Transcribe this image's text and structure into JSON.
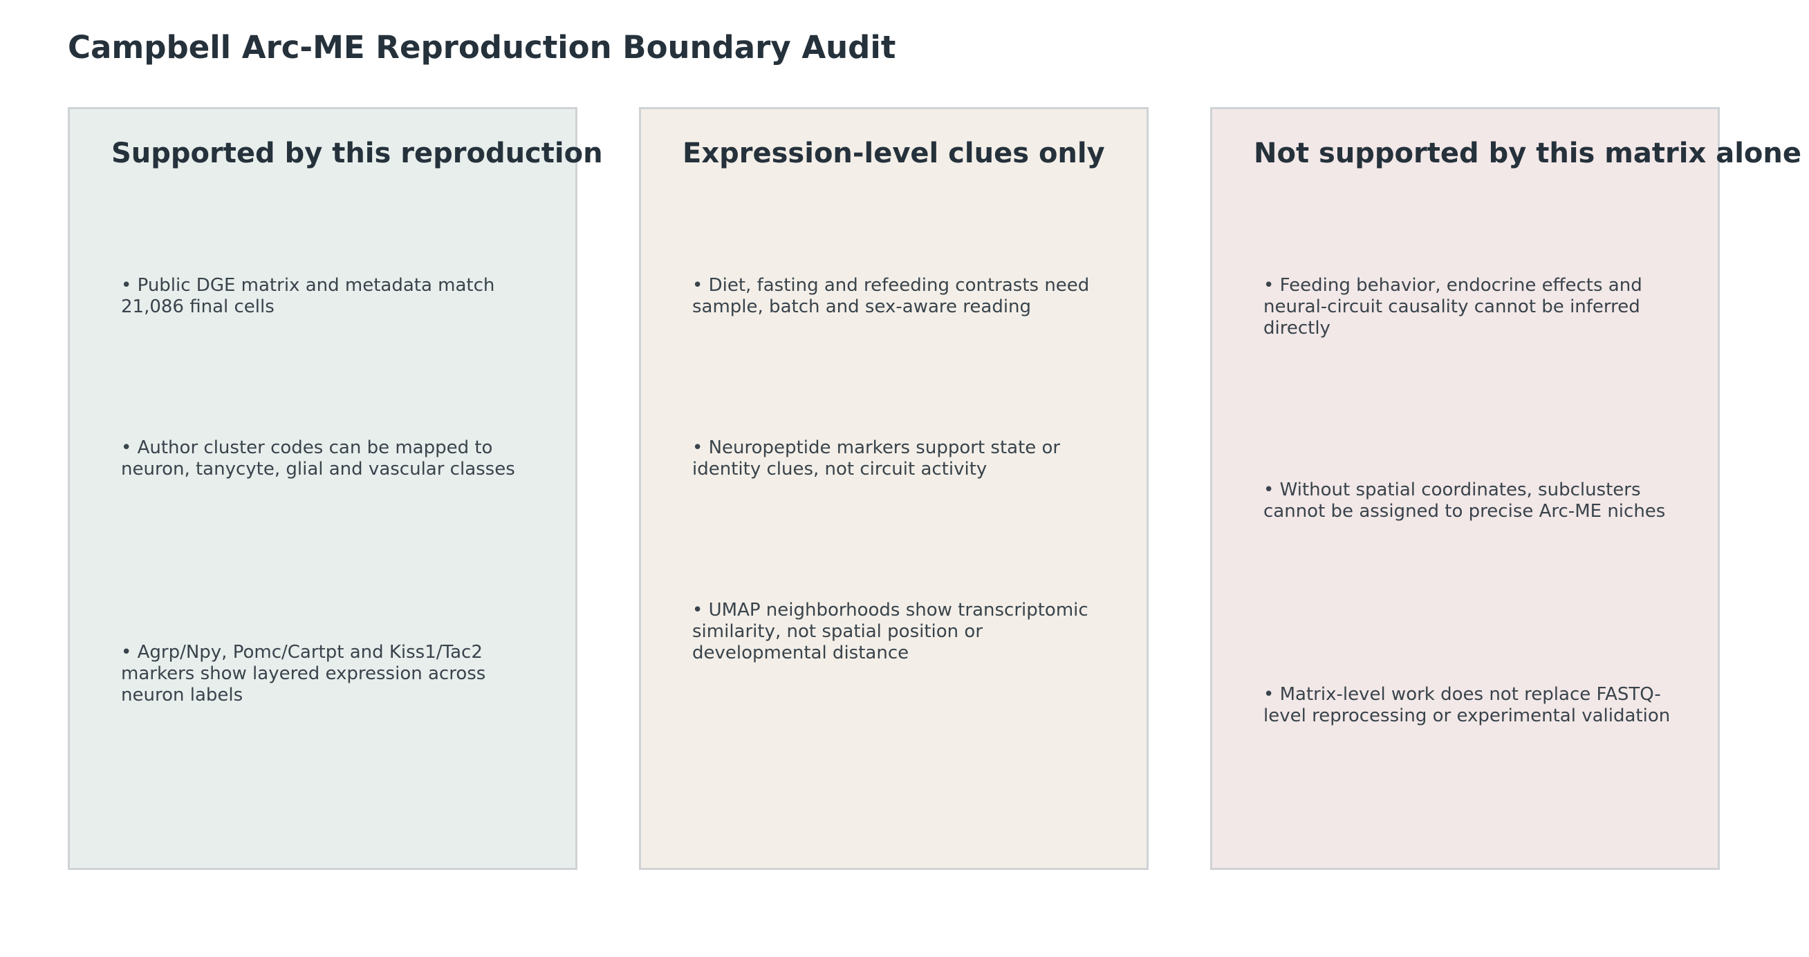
{
  "title": "Campbell Arc-ME Reproduction Boundary Audit",
  "colors": {
    "supported_bg": "#e8eeec",
    "clues_bg": "#f3efe8",
    "unsupported_bg": "#f2e8e7",
    "panel_border": "#cfd3d6",
    "title_text": "#25313b",
    "body_text": "#39434b"
  },
  "panels": [
    {
      "heading": "Supported by this reproduction",
      "items": [
        "• Public DGE matrix and metadata match 21,086 final cells",
        "• Author cluster codes can be mapped to neuron, tanycyte, glial and vascular classes",
        "• Agrp/Npy, Pomc/Cartpt and Kiss1/Tac2 markers show layered expression across neuron labels"
      ]
    },
    {
      "heading": "Expression-level clues only",
      "items": [
        "• Diet, fasting and refeeding contrasts need sample, batch and sex-aware reading",
        "• Neuropeptide markers support state or identity clues, not circuit activity",
        "• UMAP neighborhoods show transcriptomic similarity, not spatial position or developmental distance"
      ]
    },
    {
      "heading": "Not supported by this matrix alone",
      "items": [
        "• Feeding behavior, endocrine effects and neural-circuit causality cannot be inferred directly",
        "• Without spatial coordinates, subclusters cannot be assigned to precise Arc-ME niches",
        "• Matrix-level work does not replace FASTQ-level reprocessing or experimental validation"
      ]
    }
  ]
}
